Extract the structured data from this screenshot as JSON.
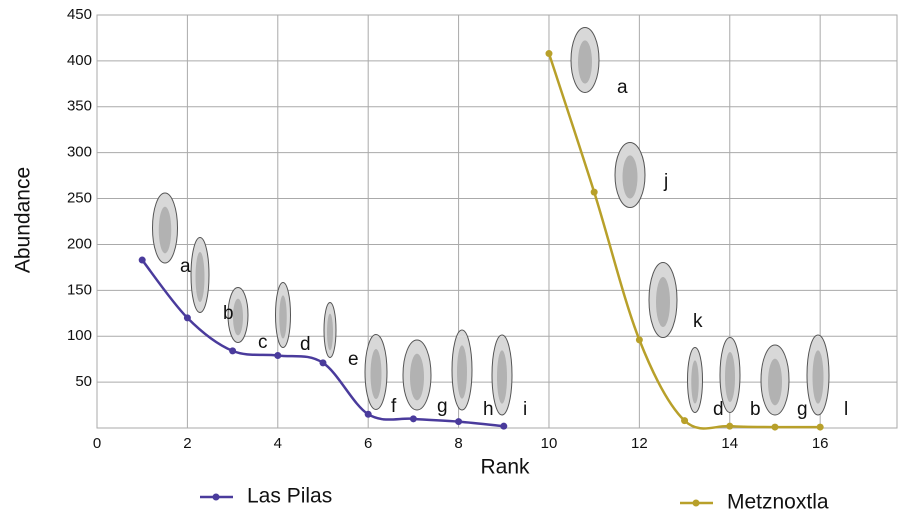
{
  "chart_data": {
    "type": "line",
    "x_label": "Rank",
    "y_label": "Abundance",
    "xlim": [
      0,
      17.7
    ],
    "xticks": [
      0,
      2,
      4,
      6,
      8,
      10,
      12,
      14,
      16
    ],
    "ylim": [
      0,
      450
    ],
    "yticks": [
      50,
      100,
      150,
      200,
      250,
      300,
      350,
      400,
      450
    ],
    "grid": true,
    "series": [
      {
        "name": "Las Pilas",
        "color": "#4a3b9c",
        "x": [
          1,
          2,
          3,
          4,
          5,
          6,
          7,
          8,
          9
        ],
        "values": [
          183,
          120,
          84,
          79,
          71,
          15,
          10,
          7,
          2
        ],
        "annotations": [
          "a",
          "b",
          "c",
          "d",
          "e",
          "f",
          "g",
          "h",
          "i"
        ]
      },
      {
        "name": "Metznoxtla",
        "color": "#b8a02a",
        "x": [
          10,
          11,
          12,
          13,
          14,
          15,
          16
        ],
        "values": [
          408,
          257,
          96,
          8,
          2,
          1,
          1
        ],
        "annotations": [
          "a",
          "j",
          "k",
          "d",
          "b",
          "g",
          "l"
        ]
      }
    ]
  }
}
